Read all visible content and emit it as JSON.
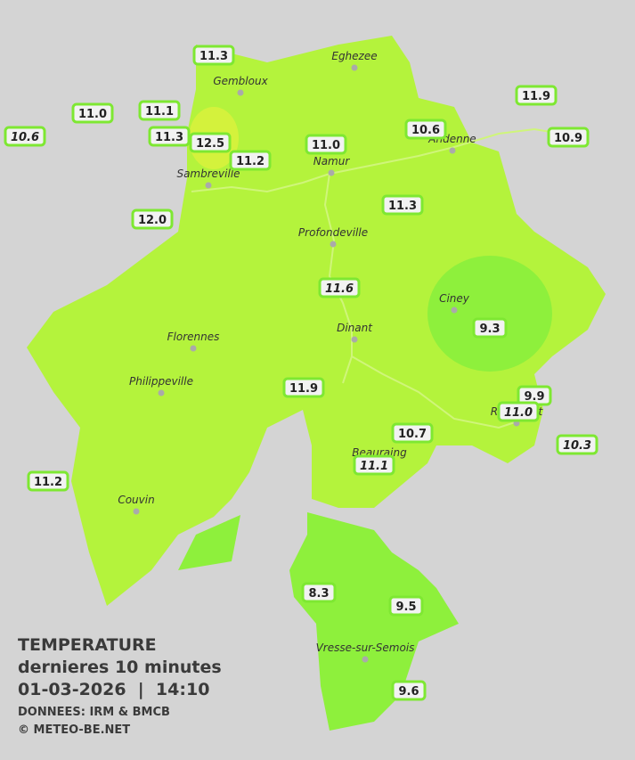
{
  "title": {
    "line1": "TEMPERATURE",
    "line2": "dernieres 10 minutes",
    "line3": "01-03-2026  |  14:10",
    "source": "DONNEES: IRM & BMCB",
    "copyright": "© METEO-BE.NET"
  },
  "towns": [
    "Eghezee",
    "Gembloux",
    "Andenne",
    "Namur",
    "Sambreville",
    "Profondeville",
    "Ciney",
    "Dinant",
    "Florennes",
    "Philippeville",
    "Beauraing",
    "Rochefort",
    "Couvin",
    "Vresse-sur-Semois"
  ],
  "stations": [
    {
      "label": "11.3",
      "italic": false
    },
    {
      "label": "11.9",
      "italic": false
    },
    {
      "label": "11.0",
      "italic": false
    },
    {
      "label": "11.1",
      "italic": false
    },
    {
      "label": "10.6",
      "italic": true
    },
    {
      "label": "10.6",
      "italic": false
    },
    {
      "label": "10.9",
      "italic": false
    },
    {
      "label": "11.3",
      "italic": false
    },
    {
      "label": "12.5",
      "italic": false
    },
    {
      "label": "11.0",
      "italic": false
    },
    {
      "label": "11.2",
      "italic": false
    },
    {
      "label": "11.3",
      "italic": false
    },
    {
      "label": "12.0",
      "italic": false
    },
    {
      "label": "11.6",
      "italic": true
    },
    {
      "label": "9.3",
      "italic": false
    },
    {
      "label": "11.9",
      "italic": false
    },
    {
      "label": "9.9",
      "italic": false
    },
    {
      "label": "11.0",
      "italic": true
    },
    {
      "label": "10.7",
      "italic": false
    },
    {
      "label": "10.3",
      "italic": true
    },
    {
      "label": "11.1",
      "italic": true
    },
    {
      "label": "11.2",
      "italic": false
    },
    {
      "label": "8.3",
      "italic": false
    },
    {
      "label": "9.5",
      "italic": false
    },
    {
      "label": "9.6",
      "italic": false
    }
  ]
}
